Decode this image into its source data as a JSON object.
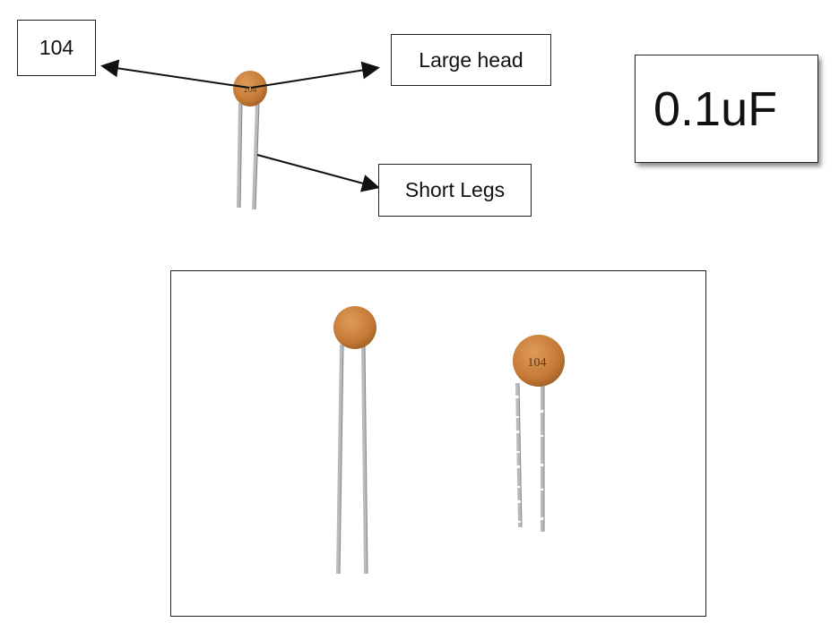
{
  "labels": {
    "code": "104",
    "large_head": "Large head",
    "short_legs": "Short Legs",
    "capacitance": "0.1uF"
  },
  "capacitors": {
    "top_marking": "104",
    "right_marking": "104"
  },
  "colors": {
    "capacitor_body": "#c8813e",
    "capacitor_body_dark": "#a9662a",
    "leg": "#b8bcc0",
    "line": "#111111"
  }
}
